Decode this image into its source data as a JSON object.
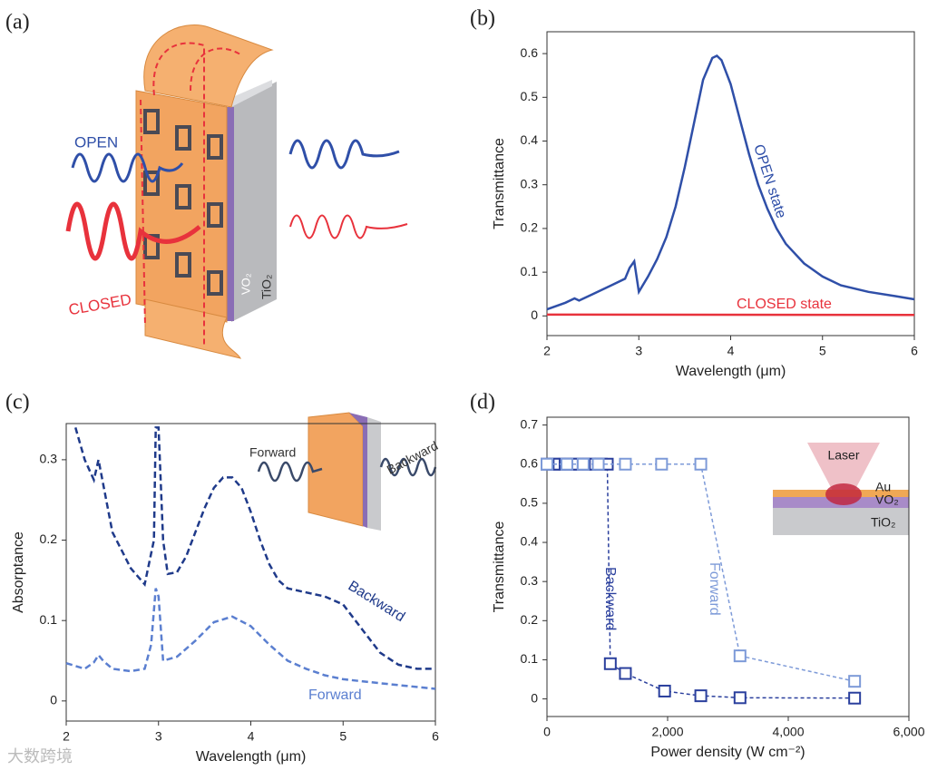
{
  "diagram": {
    "label": "(a)",
    "open": "OPEN",
    "closed": "CLOSED",
    "vo2": "VO₂",
    "tio2": "TiO₂"
  },
  "watermark": "大数跨境",
  "chart_data": [
    {
      "type": "line",
      "label": "(b)",
      "xlabel": "Wavelength (μm)",
      "ylabel": "Transmittance",
      "xlim": [
        2,
        6
      ],
      "xticks": [
        2,
        3,
        4,
        5,
        6
      ],
      "ylim": [
        -0.045,
        0.65
      ],
      "yticks": [
        0,
        0.1,
        0.2,
        0.3,
        0.4,
        0.5,
        0.6
      ],
      "series": [
        {
          "name": "OPEN state",
          "color": "#2f4fa8",
          "x": [
            2.0,
            2.2,
            2.3,
            2.35,
            2.5,
            2.7,
            2.85,
            2.9,
            2.95,
            3.0,
            3.1,
            3.2,
            3.3,
            3.4,
            3.5,
            3.6,
            3.7,
            3.8,
            3.85,
            3.9,
            4.0,
            4.1,
            4.2,
            4.3,
            4.4,
            4.5,
            4.6,
            4.8,
            5.0,
            5.2,
            5.5,
            5.8,
            6.0
          ],
          "values": [
            0.015,
            0.03,
            0.04,
            0.035,
            0.05,
            0.07,
            0.085,
            0.11,
            0.125,
            0.055,
            0.09,
            0.13,
            0.18,
            0.25,
            0.34,
            0.44,
            0.54,
            0.59,
            0.595,
            0.585,
            0.53,
            0.45,
            0.37,
            0.3,
            0.245,
            0.2,
            0.165,
            0.12,
            0.09,
            0.07,
            0.055,
            0.045,
            0.038
          ]
        },
        {
          "name": "CLOSED state",
          "color": "#e8323c",
          "x": [
            2.0,
            6.0
          ],
          "values": [
            0.003,
            0.002
          ]
        }
      ]
    },
    {
      "type": "line",
      "label": "(c)",
      "xlabel": "Wavelength (μm)",
      "ylabel": "Absorptance",
      "inset": [
        "Forward",
        "Backward"
      ],
      "xlim": [
        2,
        6
      ],
      "xticks": [
        2,
        3,
        4,
        5,
        6
      ],
      "ylim": [
        -0.025,
        0.345
      ],
      "yticks": [
        0,
        0.1,
        0.2,
        0.3
      ],
      "series": [
        {
          "name": "Backward",
          "color": "#1f3a8a",
          "dashed": true,
          "x": [
            2.1,
            2.2,
            2.3,
            2.35,
            2.4,
            2.5,
            2.7,
            2.85,
            2.95,
            2.97,
            3.0,
            3.05,
            3.1,
            3.2,
            3.3,
            3.4,
            3.5,
            3.6,
            3.7,
            3.8,
            3.9,
            4.0,
            4.1,
            4.2,
            4.3,
            4.4,
            4.6,
            4.8,
            5.0,
            5.2,
            5.4,
            5.6,
            5.8,
            6.0
          ],
          "values": [
            0.34,
            0.3,
            0.275,
            0.3,
            0.27,
            0.21,
            0.165,
            0.145,
            0.2,
            0.34,
            0.34,
            0.2,
            0.158,
            0.16,
            0.18,
            0.21,
            0.24,
            0.265,
            0.278,
            0.278,
            0.265,
            0.235,
            0.2,
            0.17,
            0.15,
            0.14,
            0.135,
            0.13,
            0.12,
            0.09,
            0.06,
            0.045,
            0.04,
            0.04
          ]
        },
        {
          "name": "Forward",
          "color": "#5b7fd0",
          "dashed": true,
          "x": [
            2.0,
            2.2,
            2.3,
            2.35,
            2.4,
            2.5,
            2.7,
            2.85,
            2.92,
            2.97,
            3.0,
            3.05,
            3.2,
            3.4,
            3.6,
            3.8,
            4.0,
            4.2,
            4.4,
            4.6,
            4.8,
            5.0,
            5.4,
            6.0
          ],
          "values": [
            0.047,
            0.04,
            0.048,
            0.057,
            0.05,
            0.04,
            0.037,
            0.04,
            0.07,
            0.14,
            0.13,
            0.05,
            0.055,
            0.075,
            0.098,
            0.105,
            0.093,
            0.07,
            0.05,
            0.04,
            0.032,
            0.027,
            0.022,
            0.015
          ]
        }
      ]
    },
    {
      "type": "line",
      "label": "(d)",
      "xlabel": "Power density (W cm⁻²)",
      "ylabel": "Transmittance",
      "markers": "square",
      "inset": [
        "Laser",
        "Au",
        "VO₂",
        "TiO₂"
      ],
      "xlim": [
        0,
        6000
      ],
      "xticks": [
        0,
        {
          "value": 2000,
          "label": "2,000"
        },
        {
          "value": 4000,
          "label": "4,000"
        },
        {
          "value": 6000,
          "label": "6,000"
        }
      ],
      "ylim": [
        -0.045,
        0.72
      ],
      "yticks": [
        0,
        0.1,
        0.2,
        0.3,
        0.4,
        0.5,
        0.6,
        0.7
      ],
      "series": [
        {
          "name": "Backward",
          "color": "#2a3f9d",
          "dashed": true,
          "x": [
            0,
            100,
            200,
            300,
            400,
            500,
            600,
            700,
            800,
            900,
            1000,
            1050,
            1300,
            1950,
            2550,
            3200,
            5100
          ],
          "values": [
            0.6,
            0.6,
            0.6,
            0.6,
            0.6,
            0.6,
            0.6,
            0.6,
            0.6,
            0.6,
            0.6,
            0.09,
            0.065,
            0.02,
            0.008,
            0.003,
            0.002
          ]
        },
        {
          "name": "Forward",
          "color": "#7d9ad8",
          "dashed": true,
          "x": [
            0,
            330,
            600,
            850,
            1300,
            1900,
            2550,
            3200,
            5100
          ],
          "values": [
            0.6,
            0.6,
            0.6,
            0.6,
            0.6,
            0.6,
            0.6,
            0.11,
            0.045
          ]
        }
      ]
    }
  ]
}
